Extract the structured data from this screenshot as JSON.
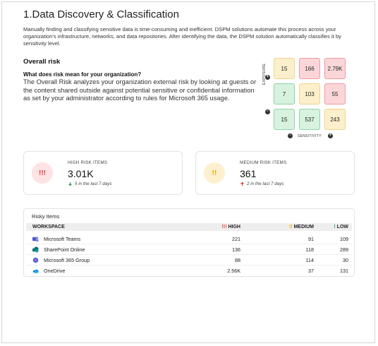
{
  "header": {
    "title": "1.Data Discovery & Classification",
    "intro": "Manually finding and classifying sensitive data is time-consuming and inefficient. DSPM solutions automate this process across your organization's infrastructure, networks, and data repositories. After identifying the data, the DSPM solution automatically classifies it by sensitivity level."
  },
  "overall": {
    "heading": "Overall risk",
    "question": "What does risk mean for your organization?",
    "answer": "The Overall Risk analyzes your organization external risk by looking at guests or the content shared outside against potential sensitive or confidential information as set by your administrator according to rules for Microsoft 365 usage."
  },
  "matrix": {
    "exposure_label": "EXPOSURE",
    "sensitivity_label": "SENSITIVITY",
    "rows": [
      [
        "15",
        "166",
        "2.79K"
      ],
      [
        "7",
        "103",
        "55"
      ],
      [
        "15",
        "537",
        "243"
      ]
    ],
    "colors": {
      "yellow": "#fcefcb",
      "red": "#fad6d9",
      "green": "#d7f2df"
    }
  },
  "cards": {
    "high": {
      "label": "HIGH RISK ITEMS",
      "value": "3.01K",
      "trend": "5 in the last 7 days",
      "icon": "!!!",
      "accent": "#e53935"
    },
    "medium": {
      "label": "MEDIUM RISK ITEMS",
      "value": "361",
      "trend": "2 in the last 7 days",
      "icon": "!!",
      "accent": "#f0a500"
    }
  },
  "risky": {
    "title": "Risky Items",
    "columns": {
      "workspace": "WORKSPACE",
      "high": "!!! HIGH",
      "medium": "!! MEDIUM",
      "low": "! LOW"
    },
    "rows": [
      {
        "name": "Microsoft Teams",
        "icon": "teams-icon",
        "high": "221",
        "medium": "91",
        "low": "109"
      },
      {
        "name": "SharePoint Online",
        "icon": "sharepoint-icon",
        "high": "136",
        "medium": "118",
        "low": "289"
      },
      {
        "name": "Microsoft 365 Group",
        "icon": "m365-group-icon",
        "high": "88",
        "medium": "114",
        "low": "30"
      },
      {
        "name": "OneDrive",
        "icon": "onedrive-icon",
        "high": "2.56K",
        "medium": "37",
        "low": "131"
      }
    ]
  }
}
